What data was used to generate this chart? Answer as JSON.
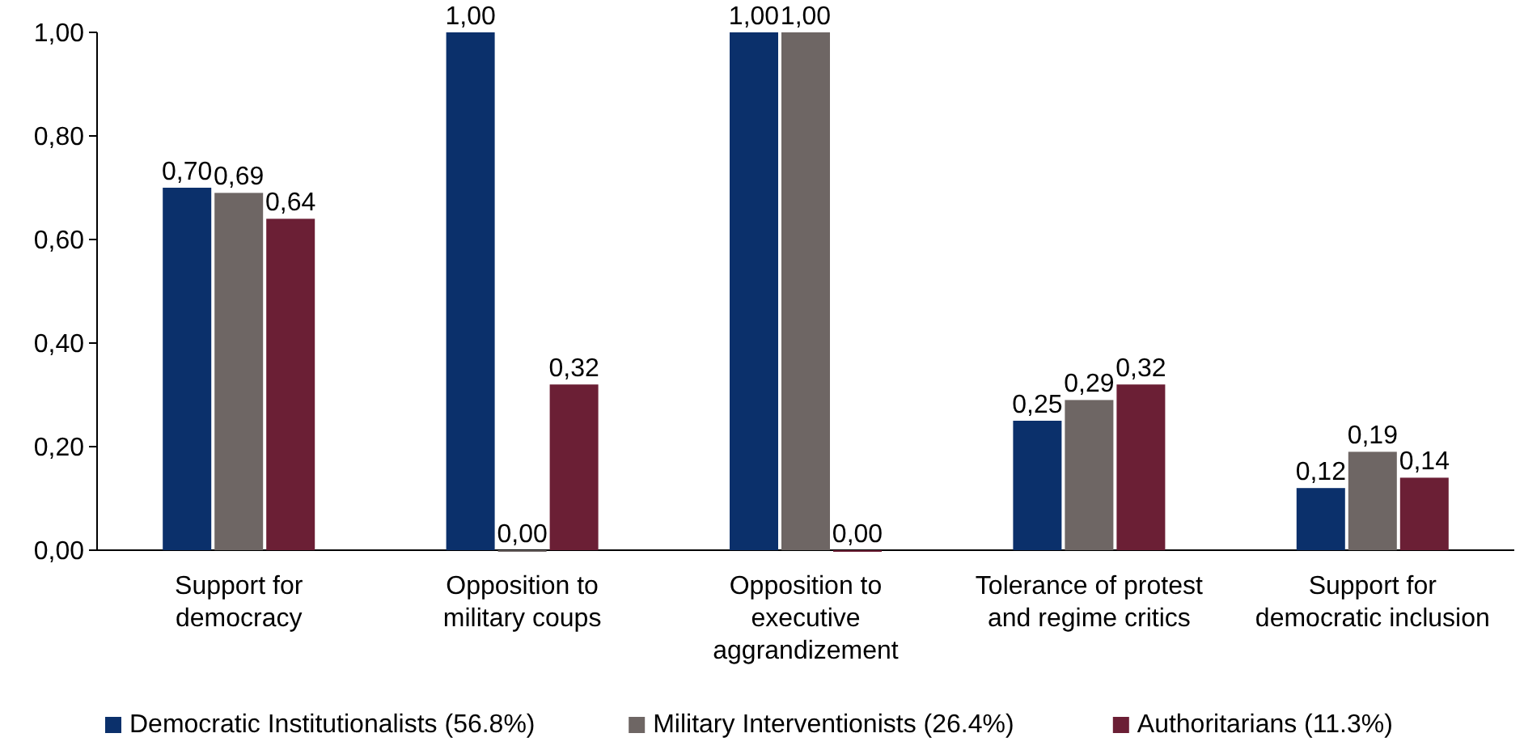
{
  "chart_data": {
    "type": "bar",
    "categories": [
      "Support for democracy",
      "Opposition to military coups",
      "Opposition to executive aggrandizement",
      "Tolerance of protest and regime critics",
      "Support for democratic inclusion"
    ],
    "series": [
      {
        "name": "Democratic Institutionalists (56.8%)",
        "color": "#0b306b",
        "values": [
          0.7,
          1.0,
          1.0,
          0.25,
          0.12
        ],
        "value_labels": [
          "0,70",
          "1,00",
          "1,00",
          "0,25",
          "0,12"
        ]
      },
      {
        "name": "Military Interventionists (26.4%)",
        "color": "#6e6664",
        "values": [
          0.69,
          0.0,
          1.0,
          0.29,
          0.19
        ],
        "value_labels": [
          "0,69",
          "0,00",
          "1,00",
          "0,29",
          "0,19"
        ]
      },
      {
        "name": "Authoritarians (11.3%)",
        "color": "#6b1f35",
        "values": [
          0.64,
          0.32,
          0.0,
          0.32,
          0.14
        ],
        "value_labels": [
          "0,64",
          "0,32",
          "0,00",
          "0,32",
          "0,14"
        ]
      }
    ],
    "ylim": [
      0,
      1
    ],
    "yticks": [
      {
        "value": 0,
        "label": "0,00"
      },
      {
        "value": 0.2,
        "label": "0,20"
      },
      {
        "value": 0.4,
        "label": "0,40"
      },
      {
        "value": 0.6,
        "label": "0,60"
      },
      {
        "value": 0.8,
        "label": "0,80"
      },
      {
        "value": 1,
        "label": "1,00"
      }
    ],
    "grid": false,
    "legend": "bottom"
  }
}
